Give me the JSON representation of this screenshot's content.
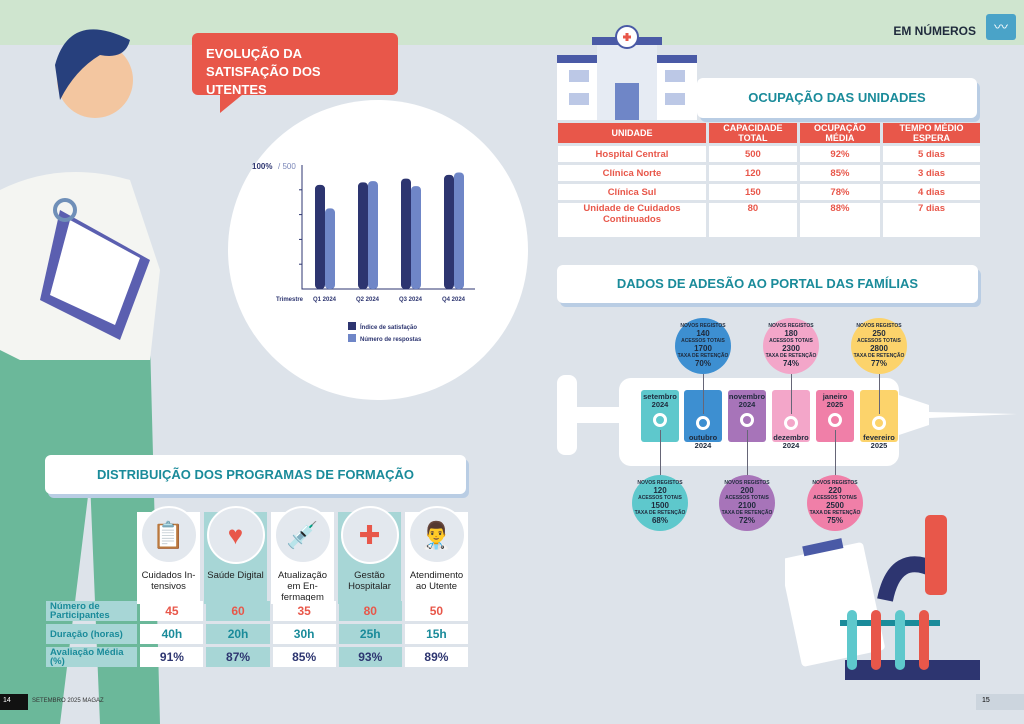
{
  "header": {
    "section": "EM NÚMEROS",
    "icon": "chart-line-icon"
  },
  "satisfaction": {
    "title": "EVOLUÇÃO DA SATISFAÇÃO DOS UTENTES"
  },
  "chart_data": {
    "type": "bar",
    "title": "EVOLUÇÃO DA SATISFAÇÃO DOS UTENTES",
    "y_top_label": "100%",
    "y_top_label2": "/ 500",
    "xlabel": "Trimestre",
    "categories": [
      "Q1 2024",
      "Q2 2024",
      "Q3 2024",
      "Q4 2024"
    ],
    "ylim": [
      0,
      100
    ],
    "series": [
      {
        "name": "Índice de satisfação",
        "unit": "%",
        "values": [
          84,
          86,
          89,
          92
        ],
        "color": "#2d3570"
      },
      {
        "name": "Número de respostas",
        "unit": "respostas (escala 0-500)",
        "values": [
          325,
          435,
          415,
          470
        ],
        "color": "#6f86c7"
      }
    ]
  },
  "occupancy": {
    "title": "OCUPAÇÃO DAS UNIDADES",
    "headers": [
      "UNIDADE",
      "CAPACIDADE TOTAL",
      "OCUPAÇÃO MÉDIA",
      "TEMPO MÉDIO ESPERA"
    ],
    "rows": [
      [
        "Hospital Central",
        "500",
        "92%",
        "5 dias"
      ],
      [
        "Clínica Norte",
        "120",
        "85%",
        "3 dias"
      ],
      [
        "Clínica Sul",
        "150",
        "78%",
        "4 dias"
      ],
      [
        "Unidade de Cuidados Continuados",
        "80",
        "88%",
        "7 dias"
      ]
    ]
  },
  "portal": {
    "title": "DADOS DE ADESÃO AO PORTAL DAS FAMÍLIAS",
    "l1": "NOVOS REGISTOS",
    "l2": "ACESSOS TOTAIS",
    "l3": "TAXA DE RETENÇÃO",
    "months": [
      {
        "month": "setembro",
        "year": "2024",
        "new": "120",
        "access": "1500",
        "retention": "68%",
        "color": "#5ec8cc"
      },
      {
        "month": "outubro",
        "year": "2024",
        "new": "140",
        "access": "1700",
        "retention": "70%",
        "color": "#3d8fd1"
      },
      {
        "month": "novembro",
        "year": "2024",
        "new": "200",
        "access": "2100",
        "retention": "72%",
        "color": "#a774b9"
      },
      {
        "month": "dezembro",
        "year": "2024",
        "new": "180",
        "access": "2300",
        "retention": "74%",
        "color": "#f3a6c9"
      },
      {
        "month": "janeiro",
        "year": "2025",
        "new": "220",
        "access": "2500",
        "retention": "75%",
        "color": "#f07fa8"
      },
      {
        "month": "fevereiro",
        "year": "2025",
        "new": "250",
        "access": "2800",
        "retention": "77%",
        "color": "#fcd36b"
      }
    ]
  },
  "programs": {
    "title": "DISTRIBUIÇÃO DOS PROGRAMAS DE FORMAÇÃO",
    "row_labels": [
      "Número de Participantes",
      "Duração (horas)",
      "Avaliação Média (%)"
    ],
    "items": [
      {
        "name": "Cuidados In-tensivos",
        "participants": "45",
        "hours": "40h",
        "rating": "91%",
        "icon": "clipboard-icon"
      },
      {
        "name": "Saúde Digital",
        "participants": "60",
        "hours": "20h",
        "rating": "87%",
        "icon": "heart-monitor-icon"
      },
      {
        "name": "Atualização em En-fermagem",
        "participants": "35",
        "hours": "30h",
        "rating": "85%",
        "icon": "syringe-icon"
      },
      {
        "name": "Gestão Hospitalar",
        "participants": "80",
        "hours": "25h",
        "rating": "93%",
        "icon": "medical-kit-icon"
      },
      {
        "name": "Atendimento ao Utente",
        "participants": "50",
        "hours": "15h",
        "rating": "89%",
        "icon": "doctor-icon"
      }
    ]
  },
  "footer": {
    "left_page": "14",
    "left_text": "SETEMBRO 2025 MAGAZ",
    "right_page": "15"
  }
}
